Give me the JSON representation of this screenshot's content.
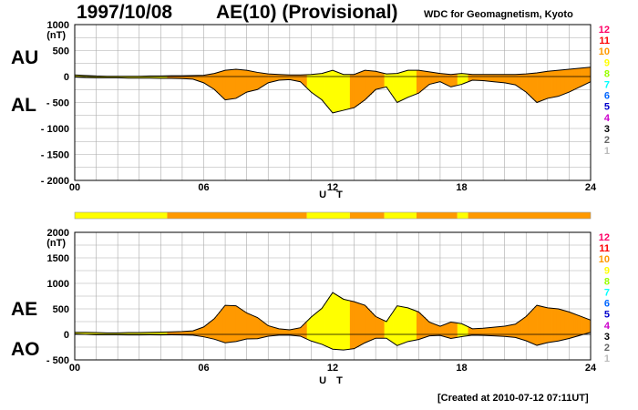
{
  "header": {
    "date": "1997/10/08",
    "title": "AE(10) (Provisional)",
    "source": "WDC for Geomagnetism, Kyoto"
  },
  "footer": {
    "created": "[Created at 2010-07-12 07:11UT]"
  },
  "colors": {
    "orange": "#ff9900",
    "yellow": "#ffff00",
    "grid": "#aaaaaa",
    "trace": "#000000"
  },
  "legend": {
    "levels": [
      "12",
      "11",
      "10",
      "9",
      "8",
      "7",
      "6",
      "5",
      "4",
      "3",
      "2",
      "1"
    ],
    "colors": [
      "#ff0066",
      "#ff0000",
      "#ff9900",
      "#ffff00",
      "#99ff00",
      "#00ffff",
      "#0066ff",
      "#0000cc",
      "#cc00cc",
      "#000000",
      "#666666",
      "#bbbbbb"
    ]
  },
  "chart_data": [
    {
      "type": "area",
      "panel": "AU/AL",
      "ylabel_top": "AU",
      "ylabel_bottom": "AL",
      "ylabel_unit": "(nT)",
      "xlabel": "U T",
      "xlim": [
        0,
        24
      ],
      "ylim": [
        -2000,
        1000
      ],
      "x_ticks": [
        "00",
        "06",
        "12",
        "18",
        "24"
      ],
      "y_ticks": [
        "1000",
        "500",
        "0",
        "- 500",
        "- 1000",
        "- 1500",
        "- 2000"
      ],
      "grid": true,
      "series": [
        {
          "name": "AU",
          "x": [
            0,
            0.5,
            1,
            1.5,
            2,
            2.5,
            3,
            3.5,
            4,
            4.5,
            5,
            5.5,
            6,
            6.5,
            7,
            7.5,
            8,
            8.5,
            9,
            9.5,
            10,
            10.5,
            11,
            11.5,
            12,
            12.5,
            13,
            13.5,
            14,
            14.5,
            15,
            15.5,
            16,
            16.5,
            17,
            17.5,
            18,
            18.5,
            19,
            19.5,
            20,
            20.5,
            21,
            21.5,
            22,
            22.5,
            23,
            23.5,
            24
          ],
          "values": [
            30,
            20,
            10,
            5,
            5,
            5,
            5,
            10,
            10,
            15,
            15,
            20,
            25,
            60,
            120,
            140,
            120,
            80,
            50,
            40,
            30,
            30,
            40,
            60,
            120,
            40,
            40,
            120,
            100,
            50,
            60,
            120,
            120,
            90,
            60,
            40,
            60,
            40,
            40,
            40,
            40,
            40,
            50,
            70,
            100,
            120,
            140,
            160,
            180
          ]
        },
        {
          "name": "AL",
          "x": [
            0,
            0.5,
            1,
            1.5,
            2,
            2.5,
            3,
            3.5,
            4,
            4.5,
            5,
            5.5,
            6,
            6.5,
            7,
            7.5,
            8,
            8.5,
            9,
            9.5,
            10,
            10.5,
            11,
            11.5,
            12,
            12.5,
            13,
            13.5,
            14,
            14.5,
            15,
            15.5,
            16,
            16.5,
            17,
            17.5,
            18,
            18.5,
            19,
            19.5,
            20,
            20.5,
            21,
            21.5,
            22,
            22.5,
            23,
            23.5,
            24
          ],
          "values": [
            -10,
            -20,
            -25,
            -25,
            -25,
            -30,
            -30,
            -30,
            -35,
            -35,
            -40,
            -50,
            -120,
            -250,
            -450,
            -420,
            -300,
            -250,
            -120,
            -70,
            -60,
            -100,
            -300,
            -450,
            -700,
            -650,
            -600,
            -450,
            -250,
            -200,
            -500,
            -400,
            -320,
            -150,
            -100,
            -200,
            -150,
            -70,
            -80,
            -100,
            -120,
            -160,
            -300,
            -500,
            -420,
            -380,
            -300,
            -200,
            -100
          ]
        }
      ],
      "activity_segments": [
        {
          "from": 0,
          "to": 4.3,
          "color": "yellow"
        },
        {
          "from": 4.3,
          "to": 10.8,
          "color": "orange"
        },
        {
          "from": 10.8,
          "to": 12.8,
          "color": "yellow"
        },
        {
          "from": 12.8,
          "to": 14.4,
          "color": "orange"
        },
        {
          "from": 14.4,
          "to": 15.9,
          "color": "yellow"
        },
        {
          "from": 15.9,
          "to": 17.8,
          "color": "orange"
        },
        {
          "from": 17.8,
          "to": 18.3,
          "color": "yellow"
        },
        {
          "from": 18.3,
          "to": 24,
          "color": "orange"
        }
      ]
    },
    {
      "type": "area",
      "panel": "AE/AO",
      "ylabel_top": "AE",
      "ylabel_bottom": "AO",
      "ylabel_unit": "(nT)",
      "xlabel": "U T",
      "xlim": [
        0,
        24
      ],
      "ylim": [
        -500,
        2000
      ],
      "x_ticks": [
        "00",
        "06",
        "12",
        "18",
        "24"
      ],
      "y_ticks": [
        "2000",
        "1500",
        "1000",
        "500",
        "0",
        "- 500"
      ],
      "grid": true,
      "series": [
        {
          "name": "AE",
          "x": [
            0,
            0.5,
            1,
            1.5,
            2,
            2.5,
            3,
            3.5,
            4,
            4.5,
            5,
            5.5,
            6,
            6.5,
            7,
            7.5,
            8,
            8.5,
            9,
            9.5,
            10,
            10.5,
            11,
            11.5,
            12,
            12.5,
            13,
            13.5,
            14,
            14.5,
            15,
            15.5,
            16,
            16.5,
            17,
            17.5,
            18,
            18.5,
            19,
            19.5,
            20,
            20.5,
            21,
            21.5,
            22,
            22.5,
            23,
            23.5,
            24
          ],
          "values": [
            40,
            40,
            35,
            30,
            30,
            35,
            35,
            40,
            45,
            50,
            55,
            70,
            145,
            310,
            570,
            560,
            420,
            330,
            170,
            110,
            90,
            130,
            340,
            510,
            820,
            690,
            640,
            570,
            350,
            250,
            560,
            520,
            440,
            240,
            160,
            240,
            210,
            110,
            120,
            140,
            160,
            200,
            350,
            570,
            520,
            500,
            440,
            360,
            280
          ]
        },
        {
          "name": "AO",
          "x": [
            0,
            0.5,
            1,
            1.5,
            2,
            2.5,
            3,
            3.5,
            4,
            4.5,
            5,
            5.5,
            6,
            6.5,
            7,
            7.5,
            8,
            8.5,
            9,
            9.5,
            10,
            10.5,
            11,
            11.5,
            12,
            12.5,
            13,
            13.5,
            14,
            14.5,
            15,
            15.5,
            16,
            16.5,
            17,
            17.5,
            18,
            18.5,
            19,
            19.5,
            20,
            20.5,
            21,
            21.5,
            22,
            22.5,
            23,
            23.5,
            24
          ],
          "values": [
            10,
            0,
            -8,
            -10,
            -10,
            -12,
            -12,
            -10,
            -12,
            -10,
            -12,
            -15,
            -48,
            -95,
            -165,
            -140,
            -90,
            -85,
            -35,
            -15,
            -15,
            -35,
            -130,
            -195,
            -290,
            -305,
            -280,
            -165,
            -75,
            -75,
            -220,
            -140,
            -100,
            -30,
            -20,
            -80,
            -45,
            -15,
            -20,
            -30,
            -40,
            -60,
            -125,
            -215,
            -160,
            -130,
            -80,
            -20,
            40
          ]
        }
      ]
    }
  ]
}
